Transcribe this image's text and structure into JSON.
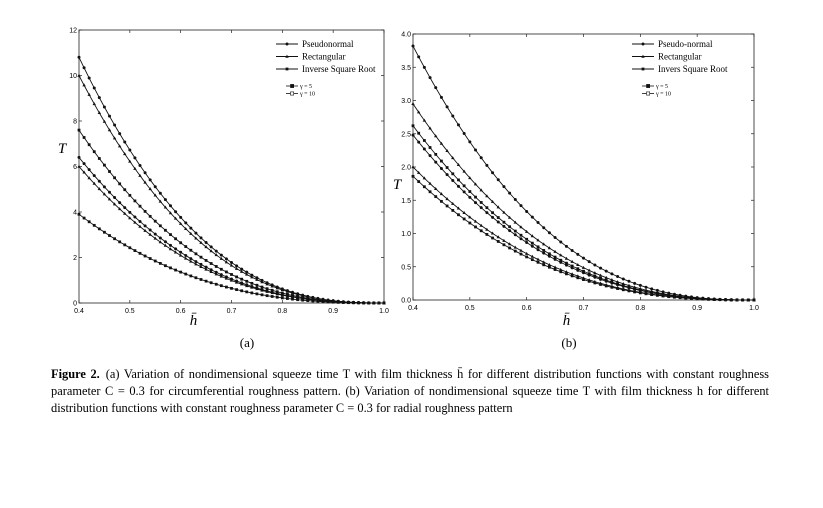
{
  "caption": {
    "label": "Figure   2.",
    "text": "(a) Variation of nondimensional squeeze time T with film thickness h̄ for different distribution functions with constant roughness parameter C = 0.3 for circumferential roughness pattern. (b) Variation of nondimensional squeeze time T with film thickness h for different distribution functions with constant roughness parameter C = 0.3 for radial roughness pattern"
  },
  "chart_data": [
    {
      "type": "line",
      "panel_label": "(a)",
      "xlabel": "h̄",
      "ylabel": "T",
      "xlim": [
        0.4,
        1.0
      ],
      "ylim": [
        0,
        12
      ],
      "xticks": [
        "0.4",
        "0.5",
        "0.6",
        "0.7",
        "0.8",
        "0.9",
        "1.0"
      ],
      "yticks": [
        "0",
        "2",
        "4",
        "6",
        "8",
        "10",
        "12"
      ],
      "legend": {
        "position": "top-right",
        "distributions": [
          "Pseudonormal",
          "Rectangular",
          "Inverse Square Root"
        ],
        "parameters": [
          "γ = 5",
          "γ = 10"
        ]
      },
      "series": [
        {
          "x0": 0.4,
          "y0": 10.8,
          "marker": "circle"
        },
        {
          "x0": 0.4,
          "y0": 10.0,
          "marker": "triangle"
        },
        {
          "x0": 0.4,
          "y0": 7.6,
          "marker": "square"
        },
        {
          "x0": 0.4,
          "y0": 6.4,
          "marker": "circle"
        },
        {
          "x0": 0.4,
          "y0": 6.0,
          "marker": "triangle"
        },
        {
          "x0": 0.4,
          "y0": 3.9,
          "marker": "square"
        }
      ]
    },
    {
      "type": "line",
      "panel_label": "(b)",
      "xlabel": "h̄",
      "ylabel": "T",
      "xlim": [
        0.4,
        1.0
      ],
      "ylim": [
        0,
        4
      ],
      "xticks": [
        "0.4",
        "0.5",
        "0.6",
        "0.7",
        "0.8",
        "0.9",
        "1.0"
      ],
      "yticks": [
        "0.0",
        "0.5",
        "1.0",
        "1.5",
        "2.0",
        "2.5",
        "3.0",
        "3.5",
        "4.0"
      ],
      "legend": {
        "position": "top-right",
        "distributions": [
          "Pseudo-normal",
          "Rectangular",
          "Invers Square Root"
        ],
        "parameters": [
          "γ = 5",
          "γ = 10"
        ]
      },
      "series": [
        {
          "x0": 0.4,
          "y0": 3.82,
          "marker": "circle"
        },
        {
          "x0": 0.4,
          "y0": 2.95,
          "marker": "triangle"
        },
        {
          "x0": 0.4,
          "y0": 2.62,
          "marker": "square"
        },
        {
          "x0": 0.4,
          "y0": 2.48,
          "marker": "circle"
        },
        {
          "x0": 0.4,
          "y0": 2.0,
          "marker": "triangle"
        },
        {
          "x0": 0.4,
          "y0": 1.86,
          "marker": "square"
        }
      ]
    }
  ]
}
